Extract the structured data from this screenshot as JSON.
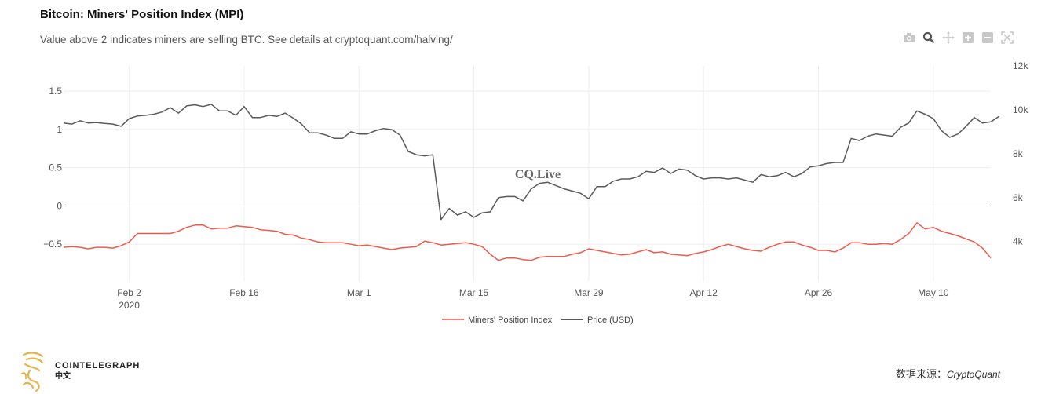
{
  "chart_data": {
    "type": "line",
    "title": "Bitcoin: Miners' Position Index (MPI)",
    "subtitle": "Value above 2 indicates miners are selling BTC. See details at cryptoquant.com/halving/",
    "watermark": "CQ.Live",
    "x_tick_labels": [
      {
        "label": "Feb 2",
        "sub": "2020",
        "day": 9
      },
      {
        "label": "Feb 16",
        "day": 23
      },
      {
        "label": "Mar 1",
        "day": 37
      },
      {
        "label": "Mar 15",
        "day": 51
      },
      {
        "label": "Mar 29",
        "day": 65
      },
      {
        "label": "Apr 12",
        "day": 79
      },
      {
        "label": "Apr 26",
        "day": 93
      },
      {
        "label": "May 10",
        "day": 107
      }
    ],
    "x_range_days": [
      1,
      114
    ],
    "y_left": {
      "ticks": [
        -0.5,
        0,
        0.5,
        1,
        1.5
      ],
      "range": [
        -0.98,
        1.83
      ]
    },
    "y_right": {
      "ticks": [
        "4k",
        "6k",
        "8k",
        "10k",
        "12k"
      ],
      "tick_values": [
        4000,
        6000,
        8000,
        10000,
        12000
      ],
      "range": [
        2200,
        12000
      ]
    },
    "grid": true,
    "legend_position": "bottom-center",
    "series": [
      {
        "name": "Miners' Position Index",
        "axis": "left",
        "color": "#ef5a4c",
        "values": [
          -0.54,
          -0.53,
          -0.54,
          -0.56,
          -0.54,
          -0.54,
          -0.55,
          -0.52,
          -0.47,
          -0.36,
          -0.36,
          -0.36,
          -0.36,
          -0.36,
          -0.33,
          -0.28,
          -0.25,
          -0.25,
          -0.3,
          -0.29,
          -0.29,
          -0.26,
          -0.27,
          -0.28,
          -0.31,
          -0.32,
          -0.33,
          -0.37,
          -0.38,
          -0.42,
          -0.44,
          -0.47,
          -0.48,
          -0.48,
          -0.48,
          -0.5,
          -0.52,
          -0.51,
          -0.53,
          -0.55,
          -0.57,
          -0.55,
          -0.54,
          -0.53,
          -0.46,
          -0.48,
          -0.51,
          -0.5,
          -0.49,
          -0.48,
          -0.5,
          -0.53,
          -0.63,
          -0.71,
          -0.68,
          -0.68,
          -0.7,
          -0.71,
          -0.67,
          -0.66,
          -0.66,
          -0.66,
          -0.63,
          -0.61,
          -0.56,
          -0.58,
          -0.6,
          -0.62,
          -0.64,
          -0.63,
          -0.6,
          -0.57,
          -0.61,
          -0.6,
          -0.63,
          -0.64,
          -0.65,
          -0.62,
          -0.6,
          -0.57,
          -0.53,
          -0.5,
          -0.53,
          -0.56,
          -0.58,
          -0.59,
          -0.54,
          -0.5,
          -0.47,
          -0.47,
          -0.51,
          -0.54,
          -0.58,
          -0.58,
          -0.6,
          -0.55,
          -0.48,
          -0.48,
          -0.5,
          -0.5,
          -0.49,
          -0.5,
          -0.44,
          -0.36,
          -0.22,
          -0.3,
          -0.28,
          -0.33,
          -0.36,
          -0.39,
          -0.43,
          -0.47,
          -0.55,
          -0.68
        ]
      },
      {
        "name": "Price (USD)",
        "axis": "right",
        "color": "#5a5a5a",
        "values": [
          9400,
          9350,
          9500,
          9400,
          9420,
          9380,
          9350,
          9250,
          9600,
          9720,
          9750,
          9800,
          9900,
          10100,
          9850,
          10180,
          10230,
          10150,
          10250,
          9950,
          9950,
          9750,
          10150,
          9650,
          9650,
          9750,
          9700,
          9850,
          9620,
          9350,
          8950,
          8950,
          8850,
          8700,
          8700,
          9000,
          8900,
          8900,
          9050,
          9150,
          9100,
          8850,
          8100,
          7950,
          7900,
          7950,
          5000,
          5500,
          5200,
          5350,
          5100,
          5300,
          5350,
          6000,
          6050,
          6050,
          5850,
          6400,
          6650,
          6700,
          6550,
          6400,
          6300,
          6200,
          5950,
          6500,
          6500,
          6750,
          6850,
          6850,
          6950,
          7200,
          7150,
          7350,
          7100,
          7300,
          7250,
          7000,
          6850,
          6900,
          6900,
          6850,
          6900,
          6800,
          6700,
          7050,
          6950,
          7000,
          7150,
          6950,
          7100,
          7400,
          7450,
          7550,
          7600,
          7600,
          8700,
          8600,
          8800,
          8900,
          8850,
          8800,
          9200,
          9400,
          9950,
          9800,
          9600,
          9050,
          8750,
          8900,
          9250,
          9650,
          9400,
          9450,
          9700
        ]
      }
    ],
    "legend": [
      {
        "label": "Miners' Position Index",
        "color": "#ef5a4c"
      },
      {
        "label": "Price (USD)",
        "color": "#222222"
      }
    ]
  },
  "toolbar": {
    "icons": [
      "camera-icon",
      "zoom-icon",
      "pan-icon",
      "zoom-in-icon",
      "zoom-out-icon",
      "autoscale-icon"
    ]
  },
  "footer": {
    "brand": "COINTELEGRAPH",
    "brand_sub": "中文",
    "source_label": "数据来源：",
    "source_name": "CryptoQuant"
  }
}
